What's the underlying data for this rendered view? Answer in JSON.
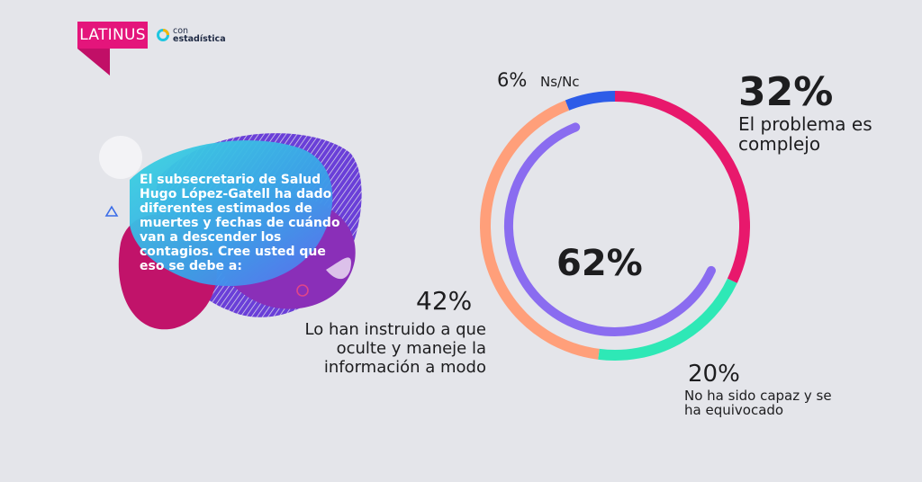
{
  "brand": {
    "name": "LATINUS",
    "partner_line1": "con",
    "partner_line2": "estadística"
  },
  "question": "El subsecretario de Salud Hugo López-Gatell ha dado diferentes estimados de muertes y fechas de cuándo van a descender los contagios. Cree usted que eso se debe a:",
  "chart_data": {
    "type": "pie",
    "series": [
      {
        "label": "El problema es complejo",
        "value": 32,
        "display": "32%",
        "color": "#e8186c"
      },
      {
        "label": "No ha sido capaz y se ha equivocado",
        "value": 20,
        "display": "20%",
        "color": "#2ee8b6"
      },
      {
        "label": "Lo han instruido a que oculte y maneje la información a modo",
        "value": 42,
        "display": "42%",
        "color": "#ff9f7a"
      },
      {
        "label": "Ns/Nc",
        "value": 6,
        "display": "6%",
        "color": "#2d5ce8"
      }
    ],
    "inner": {
      "value": 62,
      "display": "62%",
      "color": "#8a6cf0"
    }
  }
}
